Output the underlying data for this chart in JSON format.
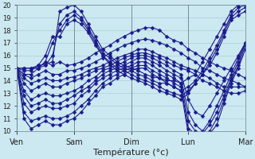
{
  "xlabel": "Température (°c)",
  "background_color": "#cce8f0",
  "grid_color": "#a8d0dc",
  "line_color": "#1a1a8c",
  "marker": "D",
  "markersize": 2.5,
  "linewidth": 0.8,
  "ylim": [
    10,
    20
  ],
  "yticks": [
    10,
    11,
    12,
    13,
    14,
    15,
    16,
    17,
    18,
    19,
    20
  ],
  "day_positions": [
    0,
    8,
    16,
    24,
    32
  ],
  "day_labels": [
    "Ven",
    "Sam",
    "Dim",
    "Lun",
    "Mar"
  ],
  "num_points": 33,
  "series": [
    [
      15.0,
      15.0,
      15.0,
      15.2,
      15.3,
      15.5,
      19.5,
      19.8,
      20.0,
      19.5,
      18.5,
      17.5,
      16.5,
      16.0,
      15.5,
      15.2,
      15.0,
      14.8,
      14.5,
      14.3,
      14.2,
      14.0,
      14.0,
      13.8,
      14.2,
      14.5,
      15.5,
      16.5,
      17.5,
      18.5,
      19.5,
      20.0,
      20.2
    ],
    [
      15.0,
      15.0,
      15.0,
      15.0,
      15.2,
      16.0,
      18.5,
      19.2,
      19.5,
      19.0,
      18.2,
      17.2,
      16.2,
      15.8,
      15.3,
      15.0,
      14.8,
      14.5,
      14.3,
      14.0,
      13.8,
      13.8,
      13.5,
      13.2,
      13.5,
      14.0,
      14.8,
      15.8,
      16.8,
      18.0,
      19.2,
      19.8,
      20.0
    ],
    [
      15.0,
      15.0,
      15.0,
      15.0,
      15.5,
      17.0,
      18.0,
      18.8,
      19.2,
      18.8,
      18.0,
      17.0,
      16.0,
      15.5,
      15.0,
      14.8,
      14.5,
      14.2,
      14.0,
      13.8,
      13.5,
      13.2,
      13.0,
      12.8,
      13.2,
      13.8,
      14.5,
      15.5,
      16.5,
      17.8,
      19.0,
      19.5,
      19.8
    ],
    [
      15.0,
      14.8,
      14.8,
      15.2,
      16.0,
      17.5,
      17.5,
      18.5,
      18.8,
      18.5,
      17.8,
      16.8,
      16.0,
      15.3,
      14.8,
      14.5,
      14.2,
      14.0,
      13.8,
      13.5,
      13.2,
      13.0,
      12.8,
      12.5,
      13.0,
      13.8,
      14.5,
      15.2,
      16.2,
      17.5,
      18.8,
      19.2,
      19.5
    ],
    [
      15.0,
      14.5,
      14.5,
      15.0,
      15.5,
      15.2,
      15.5,
      15.2,
      15.3,
      15.5,
      15.8,
      16.2,
      16.5,
      16.8,
      17.2,
      17.5,
      17.8,
      18.0,
      18.2,
      18.2,
      18.0,
      17.5,
      17.2,
      17.0,
      16.5,
      16.2,
      15.8,
      15.5,
      15.2,
      15.0,
      14.8,
      14.5,
      14.2
    ],
    [
      15.0,
      14.5,
      14.2,
      14.5,
      14.8,
      14.5,
      14.5,
      14.8,
      14.8,
      15.0,
      15.2,
      15.5,
      15.8,
      16.2,
      16.5,
      16.8,
      17.0,
      17.2,
      17.3,
      17.2,
      17.0,
      16.8,
      16.5,
      16.2,
      15.8,
      15.5,
      15.0,
      14.8,
      14.5,
      14.2,
      14.0,
      13.8,
      13.5
    ],
    [
      15.0,
      14.2,
      13.8,
      14.0,
      14.2,
      14.0,
      14.0,
      14.2,
      14.3,
      14.5,
      14.8,
      15.0,
      15.2,
      15.5,
      15.8,
      16.0,
      16.2,
      16.5,
      16.5,
      16.3,
      16.0,
      15.8,
      15.5,
      15.2,
      15.0,
      14.8,
      14.5,
      14.2,
      13.8,
      13.5,
      13.5,
      13.5,
      13.5
    ],
    [
      15.0,
      13.8,
      13.2,
      13.5,
      13.8,
      13.5,
      13.5,
      13.8,
      14.0,
      14.2,
      14.5,
      14.8,
      15.0,
      15.2,
      15.5,
      15.8,
      16.0,
      16.2,
      16.2,
      16.0,
      15.8,
      15.5,
      15.2,
      15.0,
      14.8,
      14.5,
      14.0,
      13.8,
      13.5,
      13.2,
      13.0,
      13.0,
      13.2
    ],
    [
      15.0,
      13.2,
      12.5,
      12.8,
      13.0,
      12.8,
      12.8,
      13.0,
      13.2,
      13.5,
      14.0,
      14.3,
      14.8,
      15.0,
      15.2,
      15.5,
      15.8,
      16.0,
      16.0,
      15.8,
      15.5,
      15.2,
      14.8,
      14.5,
      12.5,
      11.5,
      11.2,
      12.0,
      13.0,
      14.0,
      15.0,
      16.0,
      17.0
    ],
    [
      15.0,
      12.8,
      12.0,
      12.2,
      12.5,
      12.2,
      12.2,
      12.5,
      12.8,
      13.2,
      13.5,
      14.0,
      14.5,
      14.8,
      15.0,
      15.2,
      15.5,
      15.8,
      15.8,
      15.5,
      15.2,
      14.8,
      14.5,
      14.2,
      11.5,
      10.5,
      10.0,
      10.8,
      12.0,
      13.2,
      14.5,
      15.8,
      17.0
    ],
    [
      15.0,
      12.2,
      11.5,
      11.8,
      12.0,
      11.8,
      11.8,
      12.0,
      12.2,
      12.8,
      13.2,
      13.8,
      14.2,
      14.5,
      14.8,
      15.0,
      15.2,
      15.5,
      15.5,
      15.2,
      14.8,
      14.5,
      14.2,
      13.8,
      10.8,
      10.0,
      9.8,
      10.5,
      11.5,
      12.8,
      14.2,
      15.5,
      17.0
    ],
    [
      15.0,
      11.5,
      10.8,
      11.0,
      11.2,
      11.0,
      11.0,
      11.2,
      11.5,
      12.0,
      12.5,
      13.2,
      13.8,
      14.2,
      14.5,
      14.8,
      15.0,
      15.2,
      15.2,
      14.8,
      14.5,
      14.2,
      13.8,
      13.5,
      10.2,
      9.8,
      9.5,
      10.0,
      11.0,
      12.5,
      14.0,
      15.2,
      16.8
    ],
    [
      15.0,
      11.0,
      10.2,
      10.5,
      10.8,
      10.5,
      10.5,
      10.8,
      11.0,
      11.5,
      12.2,
      12.8,
      13.5,
      13.8,
      14.2,
      14.5,
      14.8,
      15.0,
      15.0,
      14.5,
      14.2,
      13.8,
      13.5,
      13.2,
      9.8,
      9.5,
      9.5,
      9.8,
      10.5,
      12.2,
      13.8,
      15.0,
      16.5
    ]
  ]
}
